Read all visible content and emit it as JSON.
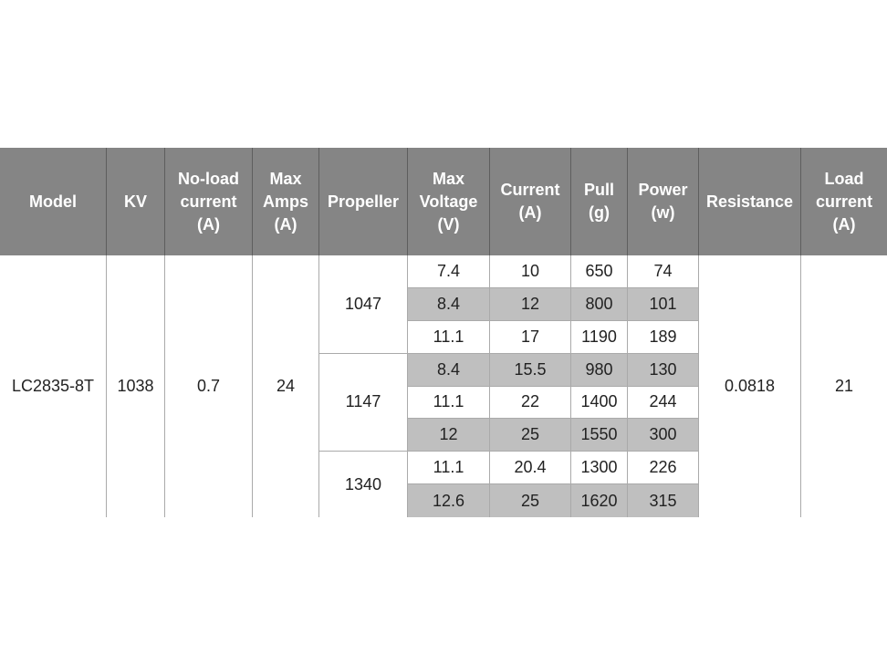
{
  "table": {
    "header": [
      [
        "Model"
      ],
      [
        "KV"
      ],
      [
        "No-load",
        "current",
        "(A)"
      ],
      [
        "Max",
        "Amps",
        "(A)"
      ],
      [
        "Propeller"
      ],
      [
        "Max",
        "Voltage",
        "(V)"
      ],
      [
        "Current",
        "(A)"
      ],
      [
        "Pull",
        "(g)"
      ],
      [
        "Power",
        "(w)"
      ],
      [
        "Resistance"
      ],
      [
        "Load",
        "current",
        "(A)"
      ]
    ],
    "model": "LC2835-8T",
    "kv": 1038,
    "no_load_current": 0.7,
    "max_amps": 24,
    "propellers": [
      {
        "name": "1047",
        "rows": [
          [
            7.4,
            10,
            650,
            74
          ],
          [
            8.4,
            12,
            800,
            101
          ],
          [
            11.1,
            17,
            1190,
            189
          ]
        ]
      },
      {
        "name": "1147",
        "rows": [
          [
            8.4,
            15.5,
            980,
            130
          ],
          [
            11.1,
            22,
            1400,
            244
          ],
          [
            12,
            25,
            1550,
            300
          ]
        ]
      },
      {
        "name": "1340",
        "rows": [
          [
            11.1,
            20.4,
            1300,
            226
          ],
          [
            12.6,
            25,
            1620,
            315
          ]
        ]
      }
    ],
    "resistance": 0.0818,
    "load_current": 21
  }
}
